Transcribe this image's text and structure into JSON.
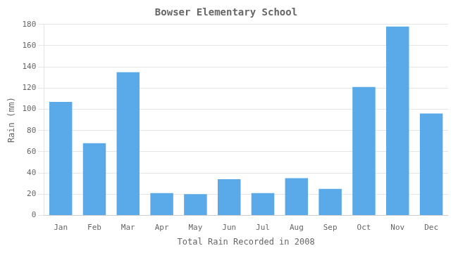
{
  "chart_data": {
    "type": "bar",
    "title": "Bowser Elementary School",
    "xlabel": "Total Rain Recorded in 2008",
    "ylabel": "Rain (mm)",
    "categories": [
      "Jan",
      "Feb",
      "Mar",
      "Apr",
      "May",
      "Jun",
      "Jul",
      "Aug",
      "Sep",
      "Oct",
      "Nov",
      "Dec"
    ],
    "values": [
      107,
      68,
      135,
      21,
      20,
      34,
      21,
      35,
      25,
      121,
      178,
      96
    ],
    "color": "#5aaaea",
    "ylim": [
      0,
      180
    ],
    "yticks": [
      0,
      20,
      40,
      60,
      80,
      100,
      120,
      140,
      160,
      180
    ],
    "grid": true
  }
}
